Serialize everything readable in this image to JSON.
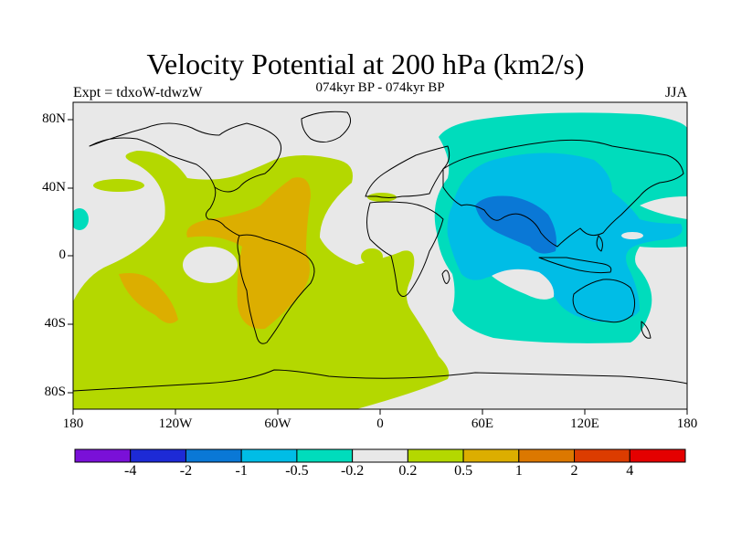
{
  "plot": {
    "title": "Velocity Potential at 200 hPa (km2/s)",
    "subtitle": "074kyr BP - 074kyr BP",
    "experiment": "Expt = tdxoW-tdwzW",
    "season": "JJA"
  },
  "axes": {
    "y_ticks": [
      "80N",
      "40N",
      "0",
      "40S",
      "80S"
    ],
    "x_ticks": [
      "180",
      "120W",
      "60W",
      "0",
      "60E",
      "120E",
      "180"
    ]
  },
  "colorbar": {
    "labels": [
      "-4",
      "-2",
      "-1",
      "-0.5",
      "-0.2",
      "0.2",
      "0.5",
      "1",
      "2",
      "4"
    ],
    "colors": [
      "#7a10d8",
      "#1d2ad6",
      "#0a78d6",
      "#00bde6",
      "#00dcbc",
      "#e8e8e8",
      "#b4d800",
      "#dcae00",
      "#dc7800",
      "#dc3c00",
      "#e40000"
    ]
  },
  "fill_colors": {
    "neutral": "#e8e8e8",
    "level_0_5": "#b4d800",
    "level_1": "#dcae00",
    "level_neg_0_2": "#00dcbc",
    "level_neg_0_5": "#00bde6",
    "level_neg_1": "#0a78d6"
  }
}
